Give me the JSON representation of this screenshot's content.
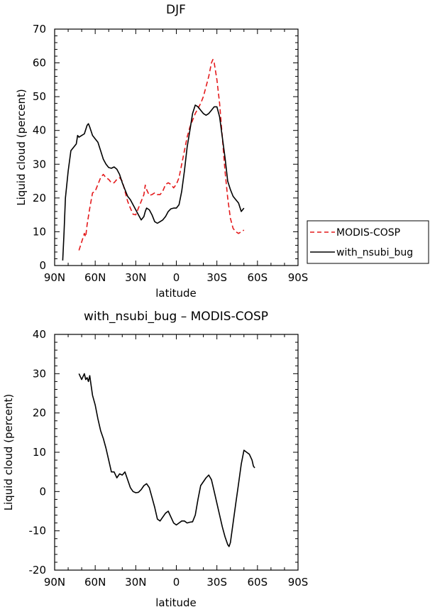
{
  "chart_data": [
    {
      "type": "line",
      "title": "DJF",
      "xlabel": "latitude",
      "ylabel": "Liquid cloud (percent)",
      "xlim": [
        90,
        -90
      ],
      "ylim": [
        0,
        70
      ],
      "x_ticks": [
        {
          "value": 90,
          "label": "90N"
        },
        {
          "value": 60,
          "label": "60N"
        },
        {
          "value": 30,
          "label": "30N"
        },
        {
          "value": 0,
          "label": "0"
        },
        {
          "value": -30,
          "label": "30S"
        },
        {
          "value": -60,
          "label": "60S"
        },
        {
          "value": -90,
          "label": "90S"
        }
      ],
      "y_ticks": [
        0,
        10,
        20,
        30,
        40,
        50,
        60,
        70
      ],
      "legend": "right",
      "series": [
        {
          "name": "MODIS-COSP",
          "color": "#e41a1c",
          "dash": "dashed",
          "points": [
            [
              72,
              4.5
            ],
            [
              70,
              7
            ],
            [
              68,
              9.5
            ],
            [
              67,
              8.5
            ],
            [
              66,
              12
            ],
            [
              64,
              17
            ],
            [
              62,
              21.5
            ],
            [
              60,
              22
            ],
            [
              58,
              24
            ],
            [
              56,
              26
            ],
            [
              54,
              27
            ],
            [
              52,
              26
            ],
            [
              50,
              25.5
            ],
            [
              48,
              24.5
            ],
            [
              46,
              24.5
            ],
            [
              44,
              25.5
            ],
            [
              42,
              26
            ],
            [
              40,
              25
            ],
            [
              38,
              22
            ],
            [
              36,
              19
            ],
            [
              34,
              17
            ],
            [
              32,
              15.2
            ],
            [
              30,
              15
            ],
            [
              28,
              17
            ],
            [
              26,
              19
            ],
            [
              24,
              21
            ],
            [
              23,
              23.8
            ],
            [
              22,
              22.5
            ],
            [
              20,
              20.8
            ],
            [
              18,
              21
            ],
            [
              16,
              21.5
            ],
            [
              14,
              21
            ],
            [
              12,
              21
            ],
            [
              10,
              22
            ],
            [
              8,
              24
            ],
            [
              6,
              24.5
            ],
            [
              4,
              24
            ],
            [
              2,
              23
            ],
            [
              0,
              24
            ],
            [
              -2,
              26
            ],
            [
              -4,
              30
            ],
            [
              -6,
              34
            ],
            [
              -8,
              38
            ],
            [
              -10,
              41
            ],
            [
              -12,
              43
            ],
            [
              -14,
              45
            ],
            [
              -16,
              46.5
            ],
            [
              -18,
              48
            ],
            [
              -20,
              50
            ],
            [
              -22,
              53
            ],
            [
              -24,
              56
            ],
            [
              -26,
              60
            ],
            [
              -27,
              61
            ],
            [
              -28,
              60
            ],
            [
              -30,
              55
            ],
            [
              -32,
              48
            ],
            [
              -34,
              38
            ],
            [
              -36,
              28
            ],
            [
              -38,
              20
            ],
            [
              -40,
              14
            ],
            [
              -42,
              11
            ],
            [
              -44,
              10
            ],
            [
              -46,
              9.5
            ],
            [
              -48,
              10
            ],
            [
              -50,
              10.5
            ]
          ]
        },
        {
          "name": "with_nsubi_bug",
          "color": "#000000",
          "dash": "solid",
          "points": [
            [
              84,
              1.5
            ],
            [
              83,
              10
            ],
            [
              82,
              20
            ],
            [
              80,
              28
            ],
            [
              78,
              34
            ],
            [
              76,
              35
            ],
            [
              74,
              36
            ],
            [
              73,
              38.5
            ],
            [
              72,
              38
            ],
            [
              70,
              38.5
            ],
            [
              68,
              39
            ],
            [
              66,
              41.5
            ],
            [
              65,
              42
            ],
            [
              64,
              41
            ],
            [
              62,
              38.5
            ],
            [
              60,
              37.5
            ],
            [
              58,
              36.5
            ],
            [
              56,
              34
            ],
            [
              54,
              31.5
            ],
            [
              52,
              30
            ],
            [
              50,
              29
            ],
            [
              48,
              28.8
            ],
            [
              46,
              29.2
            ],
            [
              44,
              28.5
            ],
            [
              42,
              27
            ],
            [
              40,
              24.5
            ],
            [
              38,
              22.5
            ],
            [
              36,
              20.5
            ],
            [
              34,
              19.5
            ],
            [
              32,
              18
            ],
            [
              30,
              16.5
            ],
            [
              28,
              15
            ],
            [
              26,
              13.5
            ],
            [
              24,
              14.5
            ],
            [
              23,
              16
            ],
            [
              22,
              17
            ],
            [
              20,
              16.5
            ],
            [
              18,
              15
            ],
            [
              16,
              13
            ],
            [
              14,
              12.5
            ],
            [
              12,
              13
            ],
            [
              10,
              13.5
            ],
            [
              8,
              14.5
            ],
            [
              6,
              16
            ],
            [
              4,
              16.8
            ],
            [
              2,
              17
            ],
            [
              0,
              17
            ],
            [
              -2,
              18
            ],
            [
              -4,
              22
            ],
            [
              -6,
              28
            ],
            [
              -8,
              35
            ],
            [
              -10,
              40
            ],
            [
              -12,
              45
            ],
            [
              -14,
              47.5
            ],
            [
              -16,
              47
            ],
            [
              -18,
              46
            ],
            [
              -20,
              45
            ],
            [
              -22,
              44.5
            ],
            [
              -24,
              45
            ],
            [
              -26,
              46
            ],
            [
              -28,
              47
            ],
            [
              -30,
              47
            ],
            [
              -32,
              44
            ],
            [
              -34,
              38
            ],
            [
              -36,
              32
            ],
            [
              -38,
              25
            ],
            [
              -40,
              22.5
            ],
            [
              -42,
              20.5
            ],
            [
              -44,
              19.5
            ],
            [
              -46,
              18.5
            ],
            [
              -48,
              16
            ],
            [
              -50,
              17
            ]
          ]
        }
      ]
    },
    {
      "type": "line",
      "title": "with_nsubi_bug – MODIS-COSP",
      "xlabel": "latitude",
      "ylabel": "Liquid cloud (percent)",
      "xlim": [
        90,
        -90
      ],
      "ylim": [
        -20,
        40
      ],
      "x_ticks": [
        {
          "value": 90,
          "label": "90N"
        },
        {
          "value": 60,
          "label": "60N"
        },
        {
          "value": 30,
          "label": "30N"
        },
        {
          "value": 0,
          "label": "0"
        },
        {
          "value": -30,
          "label": "30S"
        },
        {
          "value": -60,
          "label": "60S"
        },
        {
          "value": -90,
          "label": "90S"
        }
      ],
      "y_ticks": [
        -20,
        -10,
        0,
        10,
        20,
        30,
        40
      ],
      "series": [
        {
          "name": "with_nsubi_bug – MODIS-COSP",
          "color": "#000000",
          "dash": "solid",
          "points": [
            [
              72,
              30
            ],
            [
              70,
              28.5
            ],
            [
              68,
              30
            ],
            [
              67,
              28.5
            ],
            [
              66,
              29
            ],
            [
              65,
              28
            ],
            [
              64,
              29.5
            ],
            [
              63,
              27
            ],
            [
              62,
              24.5
            ],
            [
              60,
              22
            ],
            [
              58,
              18.5
            ],
            [
              56,
              15.5
            ],
            [
              54,
              13.5
            ],
            [
              52,
              11
            ],
            [
              50,
              8
            ],
            [
              48,
              5
            ],
            [
              46,
              5
            ],
            [
              44,
              3.5
            ],
            [
              42,
              4.5
            ],
            [
              40,
              4.2
            ],
            [
              38,
              5
            ],
            [
              36,
              3
            ],
            [
              34,
              1
            ],
            [
              32,
              0
            ],
            [
              30,
              -0.3
            ],
            [
              28,
              -0.2
            ],
            [
              26,
              0.5
            ],
            [
              24,
              1.5
            ],
            [
              22,
              2
            ],
            [
              20,
              1
            ],
            [
              18,
              -1.5
            ],
            [
              16,
              -4
            ],
            [
              14,
              -7
            ],
            [
              12,
              -7.5
            ],
            [
              10,
              -6.5
            ],
            [
              8,
              -5.5
            ],
            [
              6,
              -5
            ],
            [
              4,
              -6.5
            ],
            [
              2,
              -8
            ],
            [
              0,
              -8.5
            ],
            [
              -2,
              -8
            ],
            [
              -4,
              -7.5
            ],
            [
              -6,
              -7.5
            ],
            [
              -8,
              -8
            ],
            [
              -10,
              -7.8
            ],
            [
              -12,
              -7.7
            ],
            [
              -14,
              -6
            ],
            [
              -16,
              -2
            ],
            [
              -18,
              1.5
            ],
            [
              -20,
              2.5
            ],
            [
              -22,
              3.5
            ],
            [
              -24,
              4.2
            ],
            [
              -26,
              3
            ],
            [
              -28,
              0
            ],
            [
              -30,
              -3
            ],
            [
              -32,
              -6
            ],
            [
              -34,
              -9
            ],
            [
              -36,
              -11.5
            ],
            [
              -38,
              -13.5
            ],
            [
              -39,
              -14
            ],
            [
              -40,
              -13
            ],
            [
              -42,
              -8
            ],
            [
              -44,
              -3
            ],
            [
              -46,
              2
            ],
            [
              -48,
              7
            ],
            [
              -50,
              10.5
            ],
            [
              -52,
              10
            ],
            [
              -54,
              9.5
            ],
            [
              -56,
              8
            ],
            [
              -57,
              6.5
            ],
            [
              -58,
              6
            ]
          ]
        }
      ]
    }
  ]
}
